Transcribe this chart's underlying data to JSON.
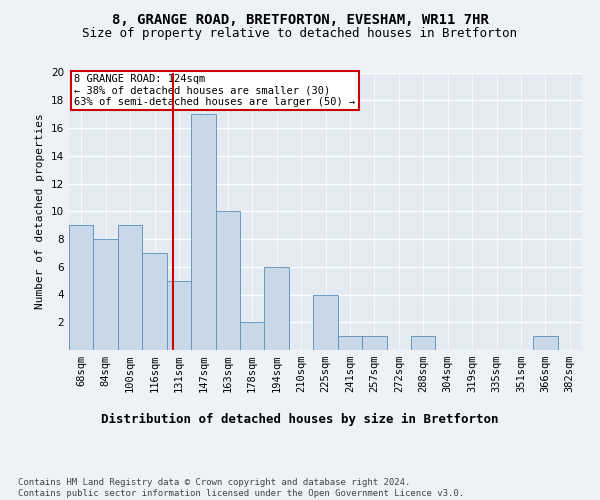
{
  "title": "8, GRANGE ROAD, BRETFORTON, EVESHAM, WR11 7HR",
  "subtitle": "Size of property relative to detached houses in Bretforton",
  "xlabel": "Distribution of detached houses by size in Bretforton",
  "ylabel": "Number of detached properties",
  "bar_color": "#c8d8e8",
  "bar_edge_color": "#5b8db8",
  "categories": [
    "68sqm",
    "84sqm",
    "100sqm",
    "116sqm",
    "131sqm",
    "147sqm",
    "163sqm",
    "178sqm",
    "194sqm",
    "210sqm",
    "225sqm",
    "241sqm",
    "257sqm",
    "272sqm",
    "288sqm",
    "304sqm",
    "319sqm",
    "335sqm",
    "351sqm",
    "366sqm",
    "382sqm"
  ],
  "values": [
    9,
    8,
    9,
    7,
    5,
    17,
    10,
    2,
    6,
    0,
    4,
    1,
    1,
    0,
    1,
    0,
    0,
    0,
    0,
    1,
    0
  ],
  "red_line_x": 3.75,
  "ylim": [
    0,
    20
  ],
  "yticks": [
    0,
    2,
    4,
    6,
    8,
    10,
    12,
    14,
    16,
    18,
    20
  ],
  "annotation_text": "8 GRANGE ROAD: 124sqm\n← 38% of detached houses are smaller (30)\n63% of semi-detached houses are larger (50) →",
  "footer": "Contains HM Land Registry data © Crown copyright and database right 2024.\nContains public sector information licensed under the Open Government Licence v3.0.",
  "background_color": "#eef2f7",
  "plot_bg_color": "#e4eaf2",
  "grid_color": "#ffffff",
  "annotation_box_color": "#ffffff",
  "annotation_box_edge": "#cc0000",
  "red_line_color": "#cc0000",
  "title_fontsize": 10,
  "subtitle_fontsize": 9,
  "ylabel_fontsize": 8,
  "tick_fontsize": 7.5,
  "annot_fontsize": 7.5,
  "footer_fontsize": 6.5,
  "xlabel_fontsize": 9
}
